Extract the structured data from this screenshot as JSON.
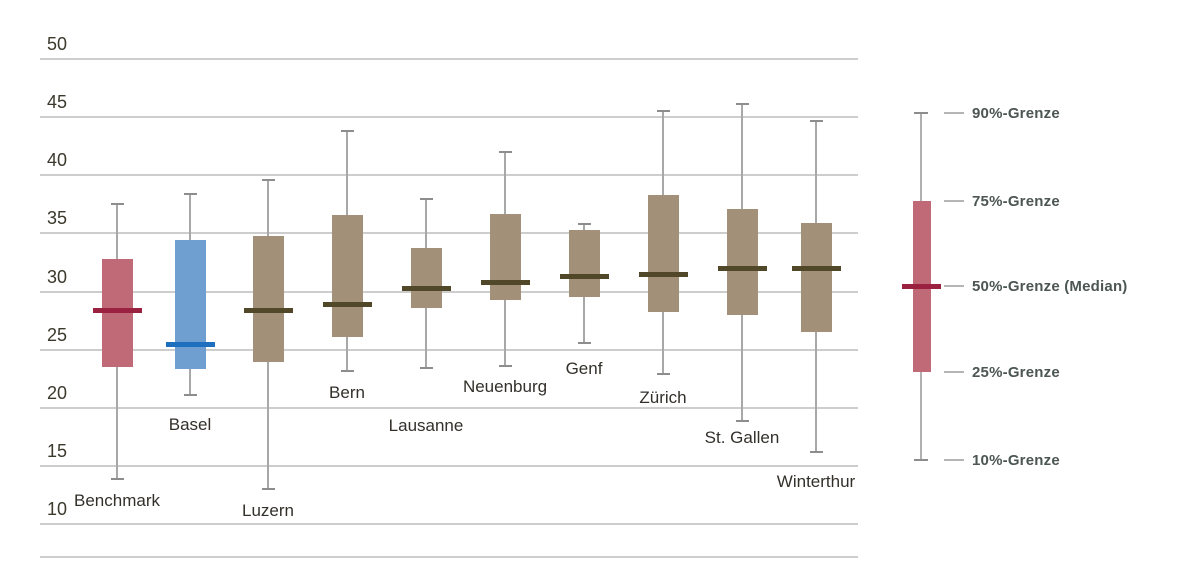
{
  "chart_data": {
    "type": "boxplot",
    "orientation": "vertical",
    "title": "",
    "xlabel": "",
    "ylabel": "",
    "ylim": [
      10,
      50
    ],
    "yticks": [
      50,
      45,
      40,
      35,
      30,
      25,
      20,
      15,
      10
    ],
    "grid": "horizontal",
    "legend_position": "right",
    "boxes": [
      {
        "label": "Benchmark",
        "p90": 37.5,
        "p75": 32.8,
        "median": 28.4,
        "p25": 23.5,
        "p10": 13.9,
        "style": "benchmark"
      },
      {
        "label": "Basel",
        "p90": 38.4,
        "p75": 34.4,
        "median": 25.4,
        "p25": 23.3,
        "p10": 21.1,
        "style": "highlight"
      },
      {
        "label": "Luzern",
        "p90": 39.6,
        "p75": 34.8,
        "median": 28.4,
        "p25": 23.9,
        "p10": 13.0,
        "style": "default"
      },
      {
        "label": "Bern",
        "p90": 43.8,
        "p75": 36.6,
        "median": 28.9,
        "p25": 26.1,
        "p10": 23.2,
        "style": "default"
      },
      {
        "label": "Lausanne",
        "p90": 38.0,
        "p75": 33.7,
        "median": 30.3,
        "p25": 28.6,
        "p10": 23.4,
        "style": "default"
      },
      {
        "label": "Neuenburg",
        "p90": 42.0,
        "p75": 36.7,
        "median": 30.8,
        "p25": 29.3,
        "p10": 23.6,
        "style": "default"
      },
      {
        "label": "Genf",
        "p90": 35.8,
        "p75": 35.3,
        "median": 31.3,
        "p25": 29.5,
        "p10": 25.6,
        "style": "default"
      },
      {
        "label": "Zürich",
        "p90": 45.5,
        "p75": 38.3,
        "median": 31.5,
        "p25": 28.2,
        "p10": 22.9,
        "style": "default"
      },
      {
        "label": "St. Gallen",
        "p90": 46.1,
        "p75": 37.1,
        "median": 32.0,
        "p25": 28.0,
        "p10": 18.9,
        "style": "default"
      },
      {
        "label": "Winterthur",
        "p90": 44.7,
        "p75": 35.9,
        "median": 32.0,
        "p25": 26.5,
        "p10": 16.2,
        "style": "default"
      }
    ],
    "legend": {
      "entries": [
        {
          "label": "90%-Grenze",
          "ref": "p90"
        },
        {
          "label": "75%-Grenze",
          "ref": "p75"
        },
        {
          "label": "50%-Grenze (Median)",
          "ref": "median"
        },
        {
          "label": "25%-Grenze",
          "ref": "p25"
        },
        {
          "label": "10%-Grenze",
          "ref": "p10"
        }
      ]
    }
  },
  "colors": {
    "benchmark_box": "#c06a78",
    "benchmark_median": "#9a2240",
    "highlight_box": "#6f9ed0",
    "highlight_median": "#1e6fbe",
    "default_box": "#a29078",
    "default_median": "#514729",
    "whisker": "#a8a8a8",
    "whisker_cap": "#8d8d8d",
    "grid": "#cdcdcd",
    "axis_text": "#3b382c",
    "label_text": "#33302a",
    "legend_text": "#4c5652",
    "legend_whisker": "#b0b0b0",
    "legend_dash": "#b5b5b5"
  }
}
